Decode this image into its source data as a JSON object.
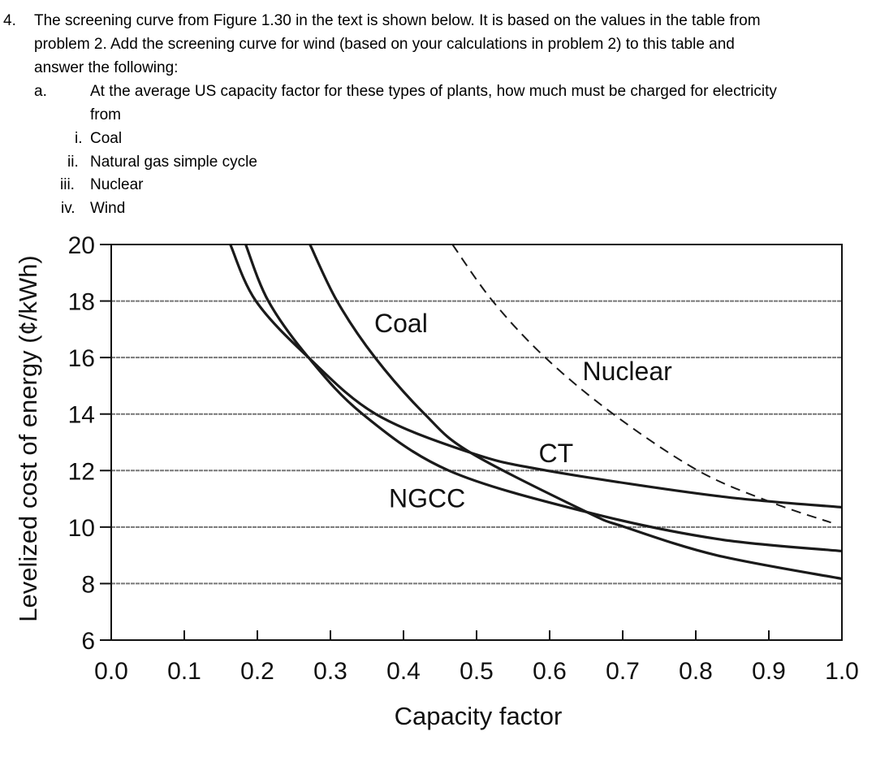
{
  "question": {
    "number": "4.",
    "lines": [
      "The screening curve from Figure 1.30 in the text is shown below.  It is based on the values in the table from",
      "problem 2.  Add the screening curve for wind (based on your calculations in problem 2) to this table and",
      "answer the following:"
    ],
    "part_a": {
      "marker": "a.",
      "lines": [
        "At the average US capacity factor for these types of plants, how much must be charged for electricity",
        "from"
      ],
      "items": [
        {
          "marker": "i.",
          "text": "Coal"
        },
        {
          "marker": "ii.",
          "text": "Natural gas simple cycle"
        },
        {
          "marker": "iii.",
          "text": "Nuclear"
        },
        {
          "marker": "iv.",
          "text": "Wind"
        }
      ]
    }
  },
  "chart_data": {
    "type": "line",
    "xlabel": "Capacity factor",
    "ylabel": "Levelized cost of energy (¢/kWh)",
    "xlim": [
      0.0,
      1.0
    ],
    "ylim": [
      6,
      20
    ],
    "xticks": [
      "0.0",
      "0.1",
      "0.2",
      "0.3",
      "0.4",
      "0.5",
      "0.6",
      "0.7",
      "0.8",
      "0.9",
      "1.0"
    ],
    "yticks": [
      "6",
      "8",
      "10",
      "12",
      "14",
      "16",
      "18",
      "20"
    ],
    "grid": "horizontal",
    "series": [
      {
        "name": "Coal",
        "style": "solid",
        "x": [
          0.272,
          0.309,
          0.361,
          0.429,
          0.492,
          0.651,
          0.703,
          0.829,
          1.0
        ],
        "y": [
          20,
          18,
          16,
          14,
          12.63,
          10.53,
          10.0,
          9.0,
          8.17
        ]
      },
      {
        "name": "CT",
        "style": "solid",
        "x": [
          0.163,
          0.198,
          0.27,
          0.362,
          0.492,
          0.596,
          0.829,
          1.0
        ],
        "y": [
          20,
          18,
          16,
          14,
          12.63,
          12.0,
          11.1,
          10.7
        ]
      },
      {
        "name": "NGCC",
        "style": "solid",
        "x": [
          0.184,
          0.215,
          0.27,
          0.344,
          0.462,
          0.651,
          0.829,
          1.0
        ],
        "y": [
          20,
          18,
          16,
          14,
          12.0,
          10.53,
          9.58,
          9.15
        ]
      },
      {
        "name": "Nuclear",
        "style": "dashed",
        "x": [
          0.467,
          0.522,
          0.594,
          0.687,
          0.803,
          0.903,
          0.985
        ],
        "y": [
          20,
          18,
          16,
          14,
          12.0,
          10.88,
          10.16
        ]
      }
    ],
    "labels": [
      {
        "text": "Coal",
        "x": 0.36,
        "y": 16.9
      },
      {
        "text": "Nuclear",
        "x": 0.645,
        "y": 15.2
      },
      {
        "text": "CT",
        "x": 0.585,
        "y": 12.3
      },
      {
        "text": "NGCC",
        "x": 0.38,
        "y": 10.7
      }
    ],
    "line_color": "#1a1a1a",
    "grid_color": "#777777"
  }
}
